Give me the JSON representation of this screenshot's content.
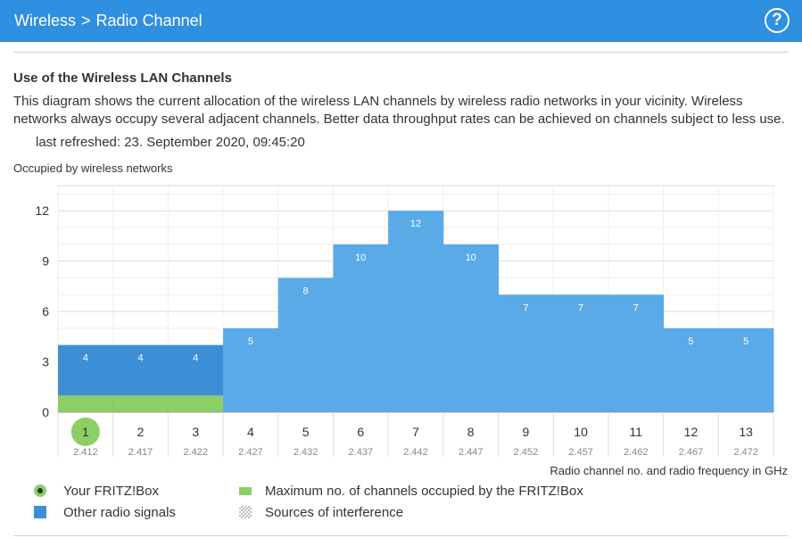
{
  "header": {
    "breadcrumb_parent": "Wireless",
    "breadcrumb_separator": ">",
    "breadcrumb_current": "Radio Channel",
    "help_label": "?"
  },
  "content": {
    "section_title": "Use of the Wireless LAN Channels",
    "description": "This diagram shows the current allocation of the wireless LAN channels by wireless radio networks in your vicinity. Wireless networks always occupy several adjacent channels. Better data throughput rates can be achieved on channels subject to less use.",
    "last_refreshed": "last refreshed: 23. September 2020, 09:45:20"
  },
  "chart_data": {
    "type": "bar",
    "ylabel": "Occupied by wireless networks",
    "xlabel": "Radio channel no. and radio frequency in GHz",
    "categories": [
      "1",
      "2",
      "3",
      "4",
      "5",
      "6",
      "7",
      "8",
      "9",
      "10",
      "11",
      "12",
      "13"
    ],
    "frequencies": [
      "2.412",
      "2.417",
      "2.422",
      "2.427",
      "2.432",
      "2.437",
      "2.442",
      "2.447",
      "2.452",
      "2.457",
      "2.462",
      "2.467",
      "2.472"
    ],
    "values": [
      4,
      4,
      4,
      5,
      8,
      10,
      12,
      10,
      7,
      7,
      7,
      5,
      5
    ],
    "fritzbox_max_channels": [
      1,
      1,
      1,
      0,
      0,
      0,
      0,
      0,
      0,
      0,
      0,
      0,
      0
    ],
    "own_channel": "1",
    "ylim": [
      0,
      13.5
    ],
    "yticks": [
      0,
      3,
      6,
      9,
      12
    ],
    "grid": true,
    "colors": {
      "other_signals": "#5aaae8",
      "fritzbox_channels": "#3d8fd5",
      "fritzbox_max": "#8ccf64",
      "own_marker": "#8ccf64"
    }
  },
  "legend": {
    "your_fritzbox": "Your FRITZ!Box",
    "other_signals": "Other radio signals",
    "max_channels": "Maximum no. of channels occupied by the FRITZ!Box",
    "interference": "Sources of interference"
  }
}
